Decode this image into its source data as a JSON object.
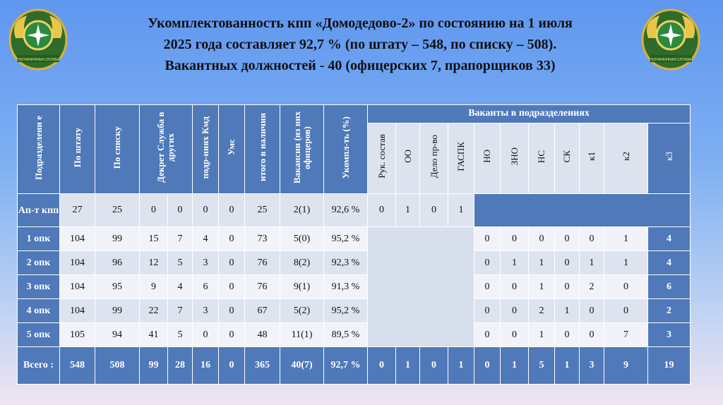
{
  "title_lines": [
    "Укомплектованность кпп «Домодедово-2» по состоянию на 1 июля",
    "2025 года составляет 92,7 % (по штату – 548, по списку – 508).",
    "Вакантных должностей - 40 (офицерских 7, прапорщиков 33)"
  ],
  "emblem_text": "ПОГРАНИЧНАЯ СЛУЖБА",
  "headers": {
    "unit": "Подразделени е",
    "shtat": "По штату",
    "spisok": "По списку",
    "dekret": "Декрет Служба в других",
    "podr": "подр-ниях Кмд",
    "ums": "Умс",
    "itogo": "итого в наличии",
    "vakansii": "Вакансии (из них офицеров)",
    "ukompl": "Укомпл-ть (%)",
    "group": "Ваканты в подразделениях",
    "sub": [
      "Рук. состав",
      "ОО",
      "Дело пр-во",
      "ГАСПК",
      "НО",
      "ЗНО",
      "НС",
      "СК",
      "к1",
      "к2",
      "к3"
    ]
  },
  "rows": [
    {
      "unit": "Ап-т кпп",
      "vals": [
        "27",
        "25",
        "0",
        "0",
        "0",
        "0",
        "25",
        "2(1)",
        "92,6 %"
      ],
      "vac": [
        "0",
        "1",
        "0",
        "1"
      ]
    },
    {
      "unit": "1 опк",
      "vals": [
        "104",
        "99",
        "15",
        "7",
        "4",
        "0",
        "73",
        "5(0)",
        "95,2 %"
      ],
      "vac": [
        "0",
        "0",
        "0",
        "0",
        "0",
        "1",
        "4"
      ]
    },
    {
      "unit": "2 опк",
      "vals": [
        "104",
        "96",
        "12",
        "5",
        "3",
        "0",
        "76",
        "8(2)",
        "92,3 %"
      ],
      "vac": [
        "0",
        "1",
        "1",
        "0",
        "1",
        "1",
        "4"
      ]
    },
    {
      "unit": "3 опк",
      "vals": [
        "104",
        "95",
        "9",
        "4",
        "6",
        "0",
        "76",
        "9(1)",
        "91,3 %"
      ],
      "vac": [
        "0",
        "0",
        "1",
        "0",
        "2",
        "0",
        "6"
      ]
    },
    {
      "unit": "4 опк",
      "vals": [
        "104",
        "99",
        "22",
        "7",
        "3",
        "0",
        "67",
        "5(2)",
        "95,2 %"
      ],
      "vac": [
        "0",
        "0",
        "2",
        "1",
        "0",
        "0",
        "2"
      ]
    },
    {
      "unit": "5 опк",
      "vals": [
        "105",
        "94",
        "41",
        "5",
        "0",
        "0",
        "48",
        "11(1)",
        "89,5 %"
      ],
      "vac": [
        "0",
        "0",
        "1",
        "0",
        "0",
        "7",
        "3"
      ]
    }
  ],
  "total": {
    "unit": "Всего :",
    "vals": [
      "548",
      "508",
      "99",
      "28",
      "16",
      "0",
      "365",
      "40(7)",
      "92,7 %"
    ],
    "vac": [
      "0",
      "1",
      "0",
      "1",
      "0",
      "1",
      "5",
      "1",
      "3",
      "9",
      "19"
    ]
  }
}
